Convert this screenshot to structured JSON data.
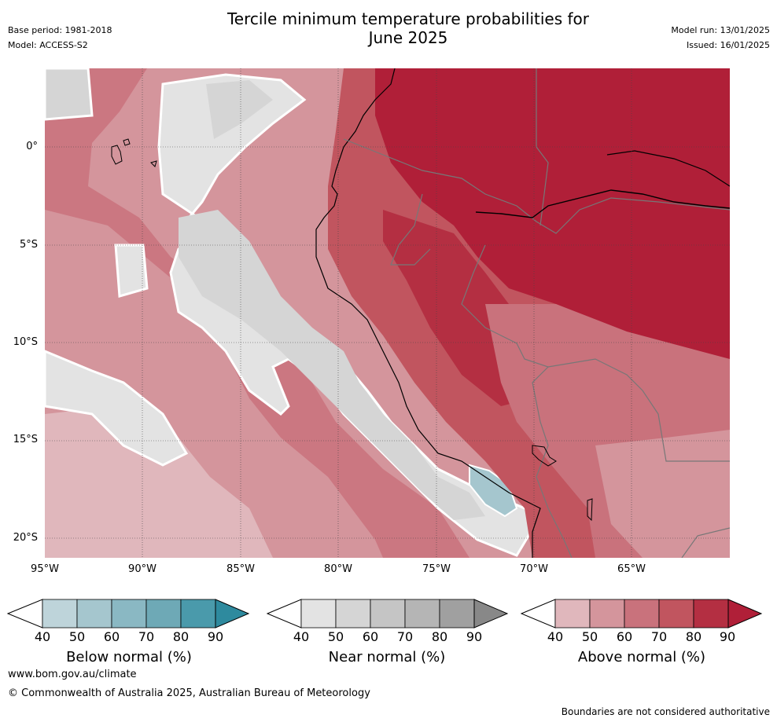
{
  "header": {
    "title_line1": "Tercile minimum temperature probabilities for",
    "title_line2": "June 2025",
    "base_period": "Base period: 1981-2018",
    "model": "Model: ACCESS-S2",
    "model_run": "Model run: 13/01/2025",
    "issued": "Issued: 16/01/2025"
  },
  "map": {
    "lat_labels": [
      "0°",
      "5°S",
      "10°S",
      "15°S",
      "20°S"
    ],
    "lon_labels": [
      "95°W",
      "90°W",
      "85°W",
      "80°W",
      "75°W",
      "70°W",
      "65°W"
    ],
    "lat_range": [
      -21,
      4
    ],
    "lon_range": [
      -95,
      -60
    ]
  },
  "colorbars": {
    "below": {
      "title": "Below normal (%)",
      "ticks": [
        "40",
        "50",
        "60",
        "70",
        "80",
        "90"
      ],
      "colors": [
        "#bed4da",
        "#a5c6ce",
        "#8ab8c3",
        "#6ea9b6",
        "#4a9aab",
        "#2e8a9e"
      ]
    },
    "near": {
      "title": "Near normal (%)",
      "ticks": [
        "40",
        "50",
        "60",
        "70",
        "80",
        "90"
      ],
      "colors": [
        "#e3e3e3",
        "#d5d5d5",
        "#c5c5c5",
        "#b5b5b5",
        "#a0a0a0",
        "#888888"
      ]
    },
    "above": {
      "title": "Above normal (%)",
      "ticks": [
        "40",
        "50",
        "60",
        "70",
        "80",
        "90"
      ],
      "colors": [
        "#e0b7bc",
        "#d4959c",
        "#c9727c",
        "#c1555f",
        "#b42f42",
        "#b01f38"
      ]
    }
  },
  "footer": {
    "website": "www.bom.gov.au/climate",
    "copyright": "© Commonwealth of Australia 2025, Australian Bureau of Meteorology",
    "disclaimer": "Boundaries are not considered authoritative"
  }
}
